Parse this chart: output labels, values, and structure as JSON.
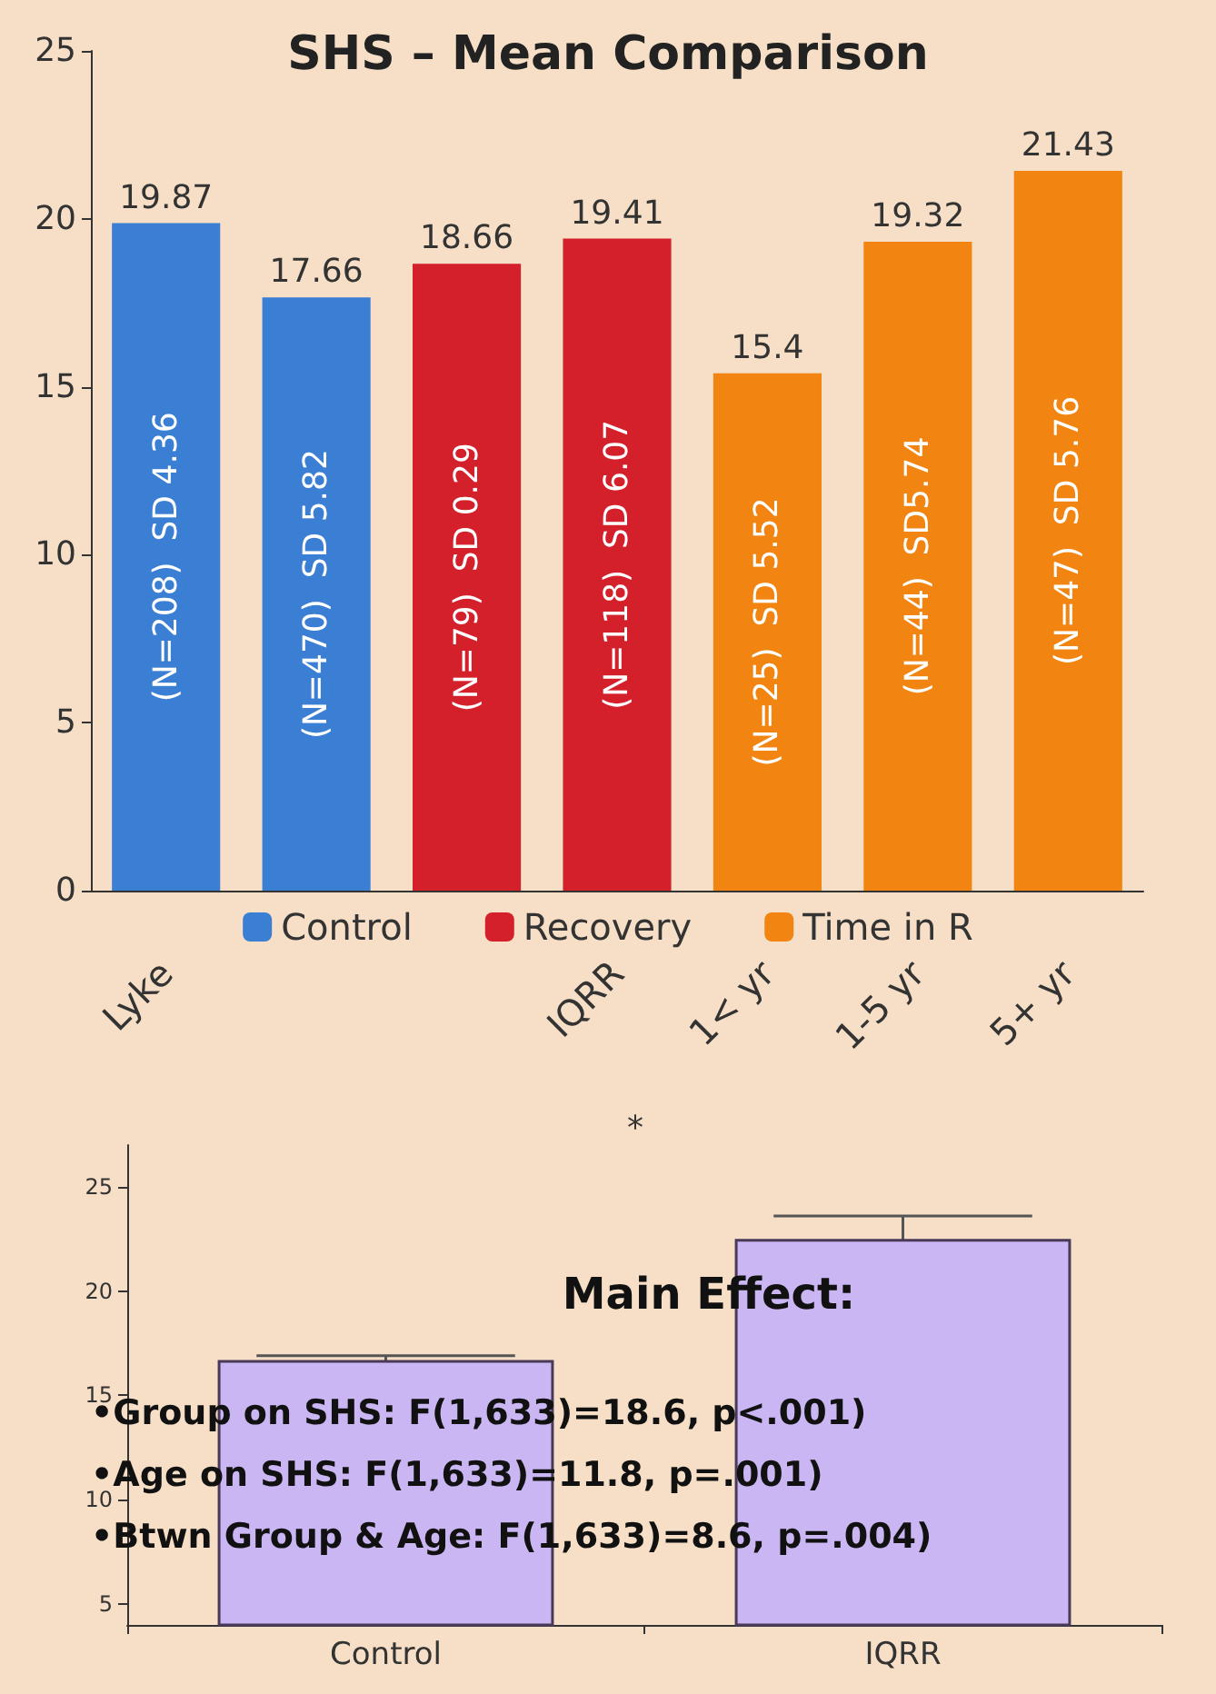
{
  "chart_data": [
    {
      "type": "bar",
      "title": "SHS – Mean Comparison",
      "categories": [
        "Lyke",
        null,
        null,
        "IQRR",
        "1< yr",
        "1-5 yr",
        "5+ yr"
      ],
      "series": [
        {
          "name": "Control",
          "color": "#3b7fd4",
          "values": [
            19.87,
            17.66,
            null,
            null,
            null,
            null,
            null
          ]
        },
        {
          "name": "Recovery",
          "color": "#d4202b",
          "values": [
            null,
            null,
            18.66,
            19.41,
            null,
            null,
            null
          ]
        },
        {
          "name": "Time in R",
          "color": "#f28512",
          "values": [
            null,
            null,
            null,
            null,
            15.4,
            19.32,
            21.43
          ]
        }
      ],
      "annotations": [
        "(N=208)  SD 4.36",
        "(N=470)  SD 5.82",
        "(N=79)  SD 0.29",
        "(N=118)  SD 6.07",
        "(N=25)  SD 5.52",
        "(N=44)  SD5.74",
        "(N=47)  SD 5.76"
      ],
      "ylim": [
        0,
        25
      ],
      "yticks": [
        0,
        5,
        10,
        15,
        20,
        25
      ],
      "data_labels": true,
      "legend": "bottom",
      "grid": false
    },
    {
      "type": "bar",
      "categories": [
        "Control",
        "IQRR"
      ],
      "values": [
        16.7,
        22.5
      ],
      "errors": [
        0.2,
        1.1
      ],
      "color": "#c9b6f2",
      "ylim": [
        4,
        27
      ],
      "yticks": [
        5,
        10,
        15,
        20,
        25
      ],
      "grid": false,
      "legend": false,
      "annotations": [
        "*",
        "Main Effect:",
        "•Group on SHS: F(1,633)=18.6, p<.001)",
        "•Age on SHS: F(1,633)=11.8, p=.001)",
        "•Btwn Group & Age: F(1,633)=8.6, p=.004)"
      ]
    }
  ]
}
